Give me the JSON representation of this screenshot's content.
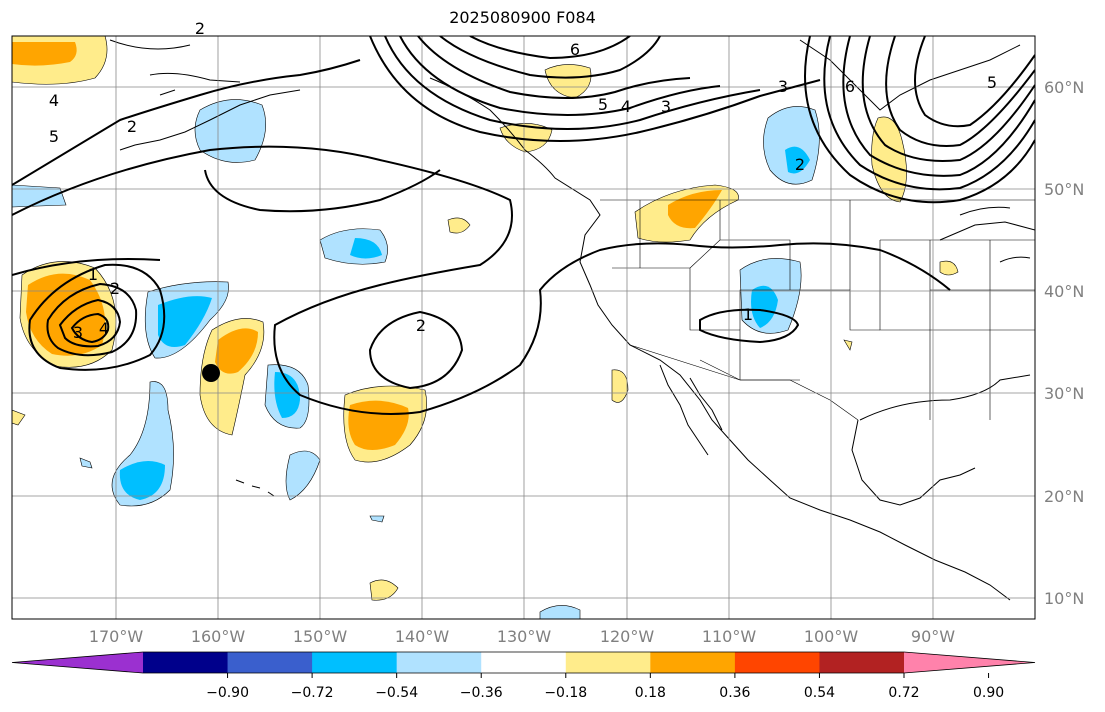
{
  "title": "2025080900 F084",
  "lat_labels": [
    "60°N",
    "50°N",
    "40°N",
    "30°N",
    "20°N",
    "10°N"
  ],
  "lon_labels": [
    "170°W",
    "160°W",
    "150°W",
    "140°W",
    "130°W",
    "120°W",
    "110°W",
    "100°W",
    "90°W"
  ],
  "colorbar": {
    "ticks": [
      "−0.90",
      "−0.72",
      "−0.54",
      "−0.36",
      "−0.18",
      "0.18",
      "0.36",
      "0.54",
      "0.72",
      "0.90"
    ],
    "colors": [
      "#9b30d0",
      "#00008b",
      "#3a5fcd",
      "#00bfff",
      "#b0e2ff",
      "#ffffff",
      "#ffec8b",
      "#ffa500",
      "#ff4500",
      "#b22222",
      "#ff82ab"
    ]
  },
  "contour_labels": [
    "6",
    "5",
    "4",
    "3",
    "3",
    "6",
    "5",
    "2",
    "4",
    "5",
    "2",
    "1",
    "2",
    "3",
    "4",
    "2",
    "1",
    "2"
  ],
  "marker": "station-dot"
}
